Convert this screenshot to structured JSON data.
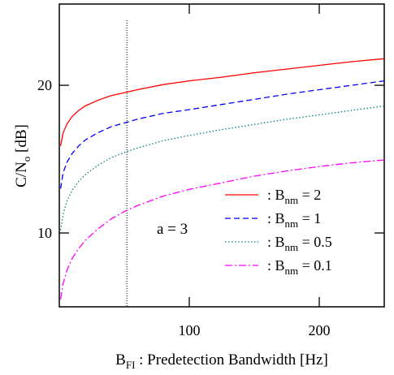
{
  "chart_data": {
    "type": "line",
    "xlabel": {
      "main": "B",
      "sub": "FI",
      "rest": " : Predetection Bandwidth [Hz]"
    },
    "ylabel": {
      "main": "C/N",
      "sub": "o",
      "rest": " [dB]"
    },
    "xlim": [
      0,
      250
    ],
    "ylim": [
      5,
      25.5
    ],
    "x_ticks": [
      100,
      200
    ],
    "y_ticks": [
      10,
      20
    ],
    "grid": false,
    "legend_position": "lower-right",
    "annotation": "a = 3",
    "vline_x": 52,
    "series": [
      {
        "name": "B_nm = 2",
        "legend": {
          "sym": ": B",
          "sub": "nm",
          "val": " = 2"
        },
        "color": "#ff0000",
        "dash": "",
        "x": [
          1,
          3,
          6,
          10,
          15,
          20,
          30,
          40,
          50,
          60,
          80,
          100,
          125,
          150,
          175,
          200,
          225,
          250
        ],
        "y": [
          15.9,
          16.8,
          17.4,
          17.9,
          18.3,
          18.6,
          19.0,
          19.3,
          19.5,
          19.7,
          20.05,
          20.3,
          20.55,
          20.85,
          21.1,
          21.35,
          21.6,
          21.8
        ]
      },
      {
        "name": "B_nm = 1",
        "legend": {
          "sym": ": B",
          "sub": "nm",
          "val": " = 1"
        },
        "color": "#0000ff",
        "dash": "7,4",
        "x": [
          1,
          3,
          6,
          10,
          15,
          20,
          30,
          40,
          50,
          60,
          80,
          100,
          125,
          150,
          175,
          200,
          225,
          250
        ],
        "y": [
          13.0,
          14.1,
          14.8,
          15.4,
          15.9,
          16.3,
          16.8,
          17.2,
          17.45,
          17.7,
          18.1,
          18.35,
          18.7,
          19.05,
          19.4,
          19.7,
          20.0,
          20.3
        ]
      },
      {
        "name": "B_nm = 0.5",
        "legend": {
          "sym": ": B",
          "sub": "nm",
          "val": " = 0.5"
        },
        "color": "#008080",
        "dash": "1.5,2.5",
        "x": [
          1,
          3,
          6,
          10,
          15,
          20,
          30,
          40,
          50,
          60,
          80,
          100,
          125,
          150,
          175,
          200,
          225,
          250
        ],
        "y": [
          10.2,
          11.3,
          12.2,
          12.9,
          13.5,
          13.95,
          14.6,
          15.1,
          15.45,
          15.75,
          16.25,
          16.6,
          17.0,
          17.35,
          17.7,
          18.0,
          18.3,
          18.6
        ]
      },
      {
        "name": "B_nm = 0.1",
        "legend": {
          "sym": ": B",
          "sub": "nm",
          "val": " = 0.1"
        },
        "color": "#ff00ff",
        "dash": "9,3,2,3",
        "x": [
          1,
          3,
          6,
          10,
          15,
          20,
          30,
          40,
          50,
          60,
          80,
          100,
          125,
          150,
          175,
          200,
          225,
          250
        ],
        "y": [
          5.5,
          6.6,
          7.5,
          8.3,
          8.95,
          9.5,
          10.3,
          10.95,
          11.45,
          11.85,
          12.5,
          12.95,
          13.4,
          13.85,
          14.2,
          14.5,
          14.75,
          14.95
        ]
      }
    ]
  }
}
